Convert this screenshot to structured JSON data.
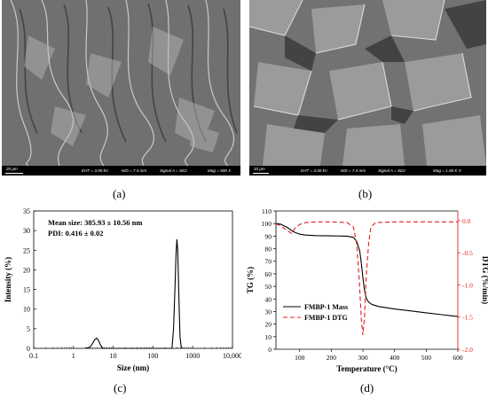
{
  "sem_images": [
    {
      "scale_label": "20 μm",
      "eht": "EHT = 3.00 kV",
      "wd": "WD = 7.4 mm",
      "signal": "Signal A = SE2",
      "mag": "Mag = 500 X",
      "panel_label": "(a)"
    },
    {
      "scale_label": "10 μm",
      "eht": "EHT = 3.00 kV",
      "wd": "WD = 7.4 mm",
      "signal": "Signal A = SE2",
      "mag": "Mag = 1.00 K X",
      "panel_label": "(b)"
    }
  ],
  "chart_data": [
    {
      "type": "line",
      "panel_label": "(c)",
      "xlabel": "Size (nm)",
      "ylabel": "Intensity (%)",
      "xscale": "log",
      "xlim": [
        0.1,
        10000
      ],
      "ylim": [
        0,
        35
      ],
      "xticks": [
        0.1,
        1,
        10,
        100,
        1000,
        10000
      ],
      "xtick_labels": [
        "0.1",
        "1",
        "10",
        "100",
        "1000",
        "10,000"
      ],
      "yticks": [
        0,
        5,
        10,
        15,
        20,
        25,
        30,
        35
      ],
      "annotations": [
        "Mean size: 385.93 ± 10.56 nm",
        "PDI: 0.416 ± 0.02"
      ],
      "series": [
        {
          "color": "#000000",
          "x": [
            2.0,
            2.6,
            3.0,
            3.4,
            3.8,
            4.2,
            4.8,
            5.5,
            300,
            330,
            360,
            380,
            400,
            420,
            440,
            460,
            480,
            510,
            550
          ],
          "y": [
            0,
            0.3,
            1.2,
            2.2,
            2.6,
            2.2,
            0.8,
            0,
            0,
            5,
            16,
            24,
            27.8,
            25,
            17,
            9,
            3,
            0.5,
            0
          ]
        }
      ]
    },
    {
      "type": "line",
      "panel_label": "(d)",
      "xlabel": "Temperature (°C)",
      "ylabel": "TG (%)",
      "ylabel_right": "DTG (%/min)",
      "xlim": [
        25,
        600
      ],
      "ylim": [
        0,
        110
      ],
      "ylim_right": [
        -2.0,
        0.15
      ],
      "xticks": [
        100,
        200,
        300,
        400,
        500,
        600
      ],
      "yticks": [
        0,
        10,
        20,
        30,
        40,
        50,
        60,
        70,
        80,
        90,
        100,
        110
      ],
      "yticks_right": [
        0.0,
        -0.5,
        -1.0,
        -1.5,
        -2.0
      ],
      "ytick_right_labels": [
        "0.0",
        "-0.5",
        "-1.0",
        "-1.5",
        "-2.0"
      ],
      "right_axis_color": "#e0201b",
      "legend": "left-center",
      "series": [
        {
          "name": "FMBP-1 Mass",
          "color": "#000000",
          "dash": "solid",
          "axis": "left",
          "x": [
            25,
            40,
            60,
            80,
            100,
            120,
            150,
            200,
            250,
            270,
            280,
            290,
            295,
            300,
            305,
            310,
            315,
            320,
            330,
            350,
            400,
            450,
            500,
            550,
            600
          ],
          "y": [
            100,
            99.5,
            97,
            93.5,
            91.5,
            90.8,
            90.4,
            90.2,
            90,
            89,
            86,
            78,
            68,
            57,
            47,
            41,
            38.5,
            37,
            35.5,
            34,
            32,
            30.5,
            29,
            27.5,
            26
          ]
        },
        {
          "name": "FMBP-1 DTG",
          "color": "#e0201b",
          "dash": "dashed",
          "axis": "right",
          "x": [
            25,
            40,
            60,
            75,
            85,
            100,
            120,
            150,
            200,
            250,
            270,
            280,
            288,
            295,
            300,
            305,
            310,
            318,
            325,
            340,
            400,
            500,
            600
          ],
          "y": [
            -0.05,
            -0.08,
            -0.15,
            -0.2,
            -0.12,
            -0.06,
            -0.03,
            -0.02,
            -0.02,
            -0.03,
            -0.1,
            -0.35,
            -0.9,
            -1.55,
            -1.78,
            -1.5,
            -0.9,
            -0.35,
            -0.1,
            -0.03,
            -0.02,
            -0.02,
            -0.02
          ]
        }
      ]
    }
  ]
}
